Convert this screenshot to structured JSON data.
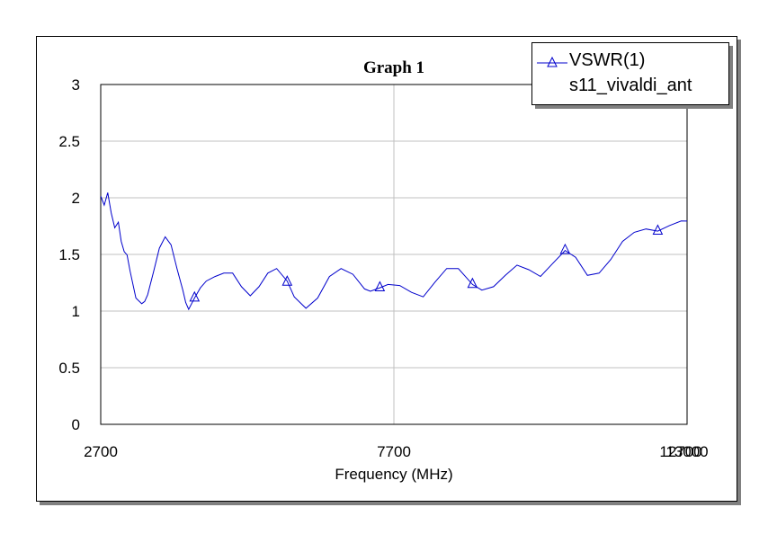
{
  "chart_data": {
    "type": "line",
    "title": "Graph 1",
    "xlabel": "Frequency (MHz)",
    "ylabel": "",
    "xlim": [
      2700,
      12700
    ],
    "ylim": [
      0,
      3
    ],
    "grid": true,
    "legend_position": "top-right",
    "x_tick_labels": [
      "2700",
      "7700",
      "12700",
      "13000"
    ],
    "y_tick_labels": [
      "0",
      "0.5",
      "1",
      "1.5",
      "2",
      "2.5",
      "3"
    ],
    "y_ticks": [
      0,
      0.5,
      1,
      1.5,
      2,
      2.5,
      3
    ],
    "x_grid_lines": [
      2700,
      7700,
      12700
    ],
    "series": [
      {
        "name": "VSWR(1)",
        "subtitle": "s11_vivaldi_ant",
        "color": "#0000cc",
        "marker": "triangle",
        "markers_x": [
          4300,
          5880,
          7460,
          9040,
          10620,
          12200
        ],
        "x": [
          2700,
          2760,
          2820,
          2880,
          2940,
          3000,
          3050,
          3100,
          3150,
          3200,
          3300,
          3400,
          3450,
          3500,
          3600,
          3700,
          3800,
          3900,
          4000,
          4100,
          4150,
          4200,
          4300,
          4400,
          4500,
          4650,
          4800,
          4950,
          5100,
          5250,
          5400,
          5550,
          5700,
          5880,
          6000,
          6200,
          6400,
          6600,
          6800,
          7000,
          7200,
          7300,
          7460,
          7600,
          7800,
          8000,
          8200,
          8400,
          8600,
          8800,
          9040,
          9200,
          9400,
          9600,
          9800,
          10000,
          10200,
          10400,
          10620,
          10800,
          11000,
          11200,
          11400,
          11600,
          11800,
          12000,
          12200,
          12400,
          12600,
          12700,
          12900,
          13000
        ],
        "y": [
          2.02,
          1.93,
          2.05,
          1.86,
          1.74,
          1.78,
          1.62,
          1.52,
          1.5,
          1.35,
          1.12,
          1.06,
          1.09,
          1.14,
          1.35,
          1.55,
          1.66,
          1.58,
          1.38,
          1.18,
          1.08,
          1.01,
          1.12,
          1.2,
          1.27,
          1.3,
          1.34,
          1.33,
          1.22,
          1.13,
          1.22,
          1.33,
          1.38,
          1.26,
          1.13,
          1.02,
          1.12,
          1.3,
          1.38,
          1.32,
          1.2,
          1.17,
          1.21,
          1.23,
          1.23,
          1.16,
          1.13,
          1.25,
          1.38,
          1.37,
          1.24,
          1.18,
          1.22,
          1.31,
          1.41,
          1.36,
          1.31,
          1.41,
          1.54,
          1.47,
          1.32,
          1.33,
          1.46,
          1.61,
          1.7,
          1.72,
          1.71,
          1.75,
          1.8,
          1.79,
          1.74,
          1.68
        ]
      }
    ]
  }
}
